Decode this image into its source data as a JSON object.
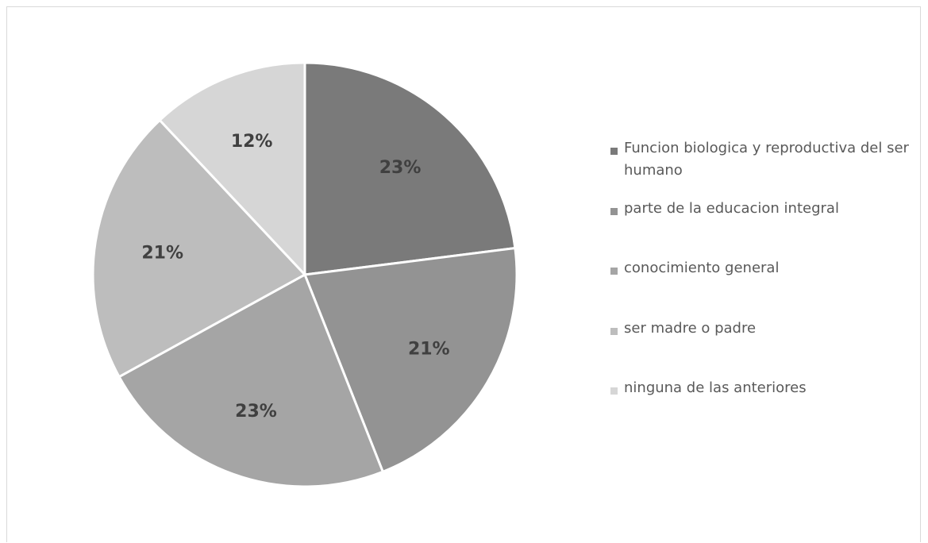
{
  "chart_data": {
    "type": "pie",
    "categories": [
      "Funcion biologica y reproductiva del ser humano",
      "parte de la educacion integral",
      "conocimiento general",
      "ser madre o padre",
      "ninguna de las anteriores"
    ],
    "values": [
      23,
      21,
      23,
      21,
      12
    ],
    "labels": [
      "23%",
      "21%",
      "23%",
      "21%",
      "12%"
    ],
    "colors": [
      "#7a7a7a",
      "#939393",
      "#a5a5a5",
      "#bdbdbd",
      "#d6d6d6"
    ],
    "legend_position": "right",
    "title": ""
  }
}
